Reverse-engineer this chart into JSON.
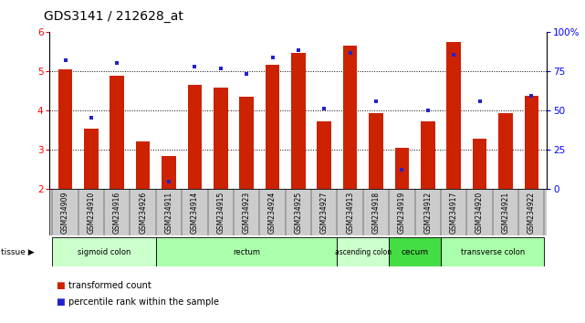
{
  "title": "GDS3141 / 212628_at",
  "samples": [
    "GSM234909",
    "GSM234910",
    "GSM234916",
    "GSM234926",
    "GSM234911",
    "GSM234914",
    "GSM234915",
    "GSM234923",
    "GSM234924",
    "GSM234925",
    "GSM234927",
    "GSM234913",
    "GSM234918",
    "GSM234919",
    "GSM234912",
    "GSM234917",
    "GSM234920",
    "GSM234921",
    "GSM234922"
  ],
  "red_values": [
    5.05,
    3.55,
    4.9,
    3.22,
    2.85,
    4.65,
    4.58,
    4.35,
    5.18,
    5.48,
    3.73,
    5.65,
    3.93,
    3.05,
    3.73,
    5.75,
    3.28,
    3.93,
    4.37
  ],
  "blue_values": [
    5.28,
    3.82,
    5.22,
    null,
    2.18,
    5.12,
    5.08,
    4.93,
    5.35,
    5.55,
    4.05,
    5.48,
    4.23,
    2.48,
    4.0,
    5.42,
    4.25,
    null,
    4.37
  ],
  "ylim_left": [
    2,
    6
  ],
  "ylim_right": [
    0,
    100
  ],
  "yticks_left": [
    2,
    3,
    4,
    5,
    6
  ],
  "yticks_right": [
    0,
    25,
    50,
    75,
    100
  ],
  "bar_color": "#cc2200",
  "dot_color": "#2222cc",
  "tissue_groups": [
    {
      "label": "sigmoid colon",
      "start": 0,
      "end": 4,
      "color": "#ccffcc"
    },
    {
      "label": "rectum",
      "start": 4,
      "end": 11,
      "color": "#aaffaa"
    },
    {
      "label": "ascending colon",
      "start": 11,
      "end": 13,
      "color": "#ccffcc"
    },
    {
      "label": "cecum",
      "start": 13,
      "end": 15,
      "color": "#44dd44"
    },
    {
      "label": "transverse colon",
      "start": 15,
      "end": 19,
      "color": "#aaffaa"
    }
  ],
  "bar_width": 0.55,
  "tick_label_fontsize": 5.5,
  "title_fontsize": 10,
  "legend_fontsize": 7
}
